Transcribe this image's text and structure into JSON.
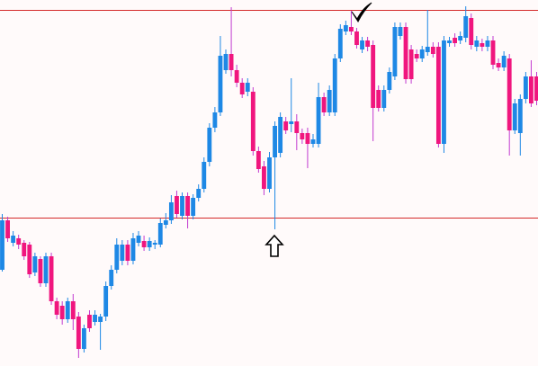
{
  "chart_data": {
    "type": "candlestick",
    "up_color": "#1e88e5",
    "down_color": "#f0167e",
    "down_wick_color": "#c23bd0",
    "level_color": "#d42a2a",
    "levels": [
      396,
      165
    ],
    "ylim": [
      0,
      407
    ],
    "open": [
      107,
      162,
      137,
      142,
      137,
      135,
      104,
      119,
      92,
      122,
      72,
      67,
      52,
      72,
      55,
      19,
      57,
      49,
      49,
      55,
      89,
      107,
      117,
      135,
      117,
      137,
      139,
      132,
      135,
      135,
      157,
      162,
      189,
      167,
      189,
      167,
      187,
      197,
      227,
      265,
      282,
      329,
      347,
      329,
      315,
      305,
      305,
      239,
      222,
      197,
      232,
      237,
      272,
      269,
      272,
      259,
      259,
      247,
      247,
      299,
      282,
      282,
      342,
      372,
      377,
      372,
      352,
      362,
      357,
      307,
      287,
      307,
      322,
      367,
      377,
      352,
      347,
      342,
      349,
      355,
      355,
      247,
      359,
      365,
      362,
      365,
      387,
      355,
      359,
      355,
      362,
      337,
      332,
      342,
      262,
      259,
      297,
      322,
      322
    ],
    "high": [
      169,
      166,
      150,
      146,
      140,
      138,
      126,
      122,
      126,
      126,
      76,
      72,
      76,
      80,
      60,
      46,
      62,
      62,
      58,
      94,
      112,
      142,
      140,
      140,
      148,
      150,
      145,
      143,
      140,
      164,
      170,
      190,
      195,
      193,
      193,
      191,
      202,
      232,
      270,
      288,
      367,
      352,
      399,
      335,
      320,
      320,
      310,
      244,
      228,
      238,
      272,
      282,
      277,
      320,
      280,
      264,
      265,
      258,
      315,
      304,
      312,
      347,
      380,
      384,
      395,
      376,
      366,
      366,
      362,
      312,
      312,
      332,
      382,
      382,
      382,
      357,
      352,
      356,
      396,
      360,
      360,
      367,
      366,
      370,
      372,
      400,
      392,
      367,
      364,
      367,
      367,
      342,
      350,
      347,
      297,
      302,
      327,
      340,
      327
    ],
    "low": [
      105,
      138,
      133,
      130,
      118,
      98,
      100,
      88,
      88,
      68,
      52,
      46,
      48,
      40,
      9,
      15,
      38,
      45,
      18,
      50,
      85,
      103,
      112,
      112,
      113,
      133,
      128,
      128,
      130,
      132,
      153,
      158,
      165,
      163,
      153,
      163,
      183,
      193,
      222,
      260,
      278,
      325,
      322,
      310,
      298,
      300,
      234,
      215,
      190,
      193,
      152,
      232,
      258,
      260,
      240,
      247,
      220,
      243,
      243,
      278,
      278,
      278,
      338,
      368,
      368,
      353,
      348,
      350,
      250,
      283,
      283,
      303,
      318,
      363,
      314,
      314,
      338,
      338,
      345,
      343,
      243,
      237,
      355,
      355,
      358,
      360,
      352,
      350,
      350,
      350,
      330,
      328,
      328,
      234,
      258,
      234,
      292,
      288,
      290
    ],
    "close": [
      162,
      142,
      145,
      135,
      122,
      102,
      122,
      92,
      122,
      72,
      57,
      52,
      72,
      52,
      19,
      42,
      42,
      57,
      55,
      89,
      107,
      135,
      135,
      117,
      142,
      145,
      132,
      139,
      137,
      159,
      162,
      182,
      169,
      189,
      167,
      187,
      197,
      227,
      265,
      282,
      345,
      347,
      329,
      315,
      302,
      315,
      239,
      219,
      197,
      232,
      267,
      277,
      262,
      272,
      259,
      252,
      247,
      252,
      299,
      282,
      307,
      342,
      375,
      379,
      372,
      357,
      362,
      355,
      287,
      287,
      307,
      327,
      377,
      377,
      319,
      319,
      342,
      352,
      355,
      347,
      247,
      362,
      362,
      359,
      367,
      389,
      357,
      362,
      355,
      362,
      335,
      332,
      345,
      262,
      292,
      297,
      322,
      292,
      295
    ]
  }
}
